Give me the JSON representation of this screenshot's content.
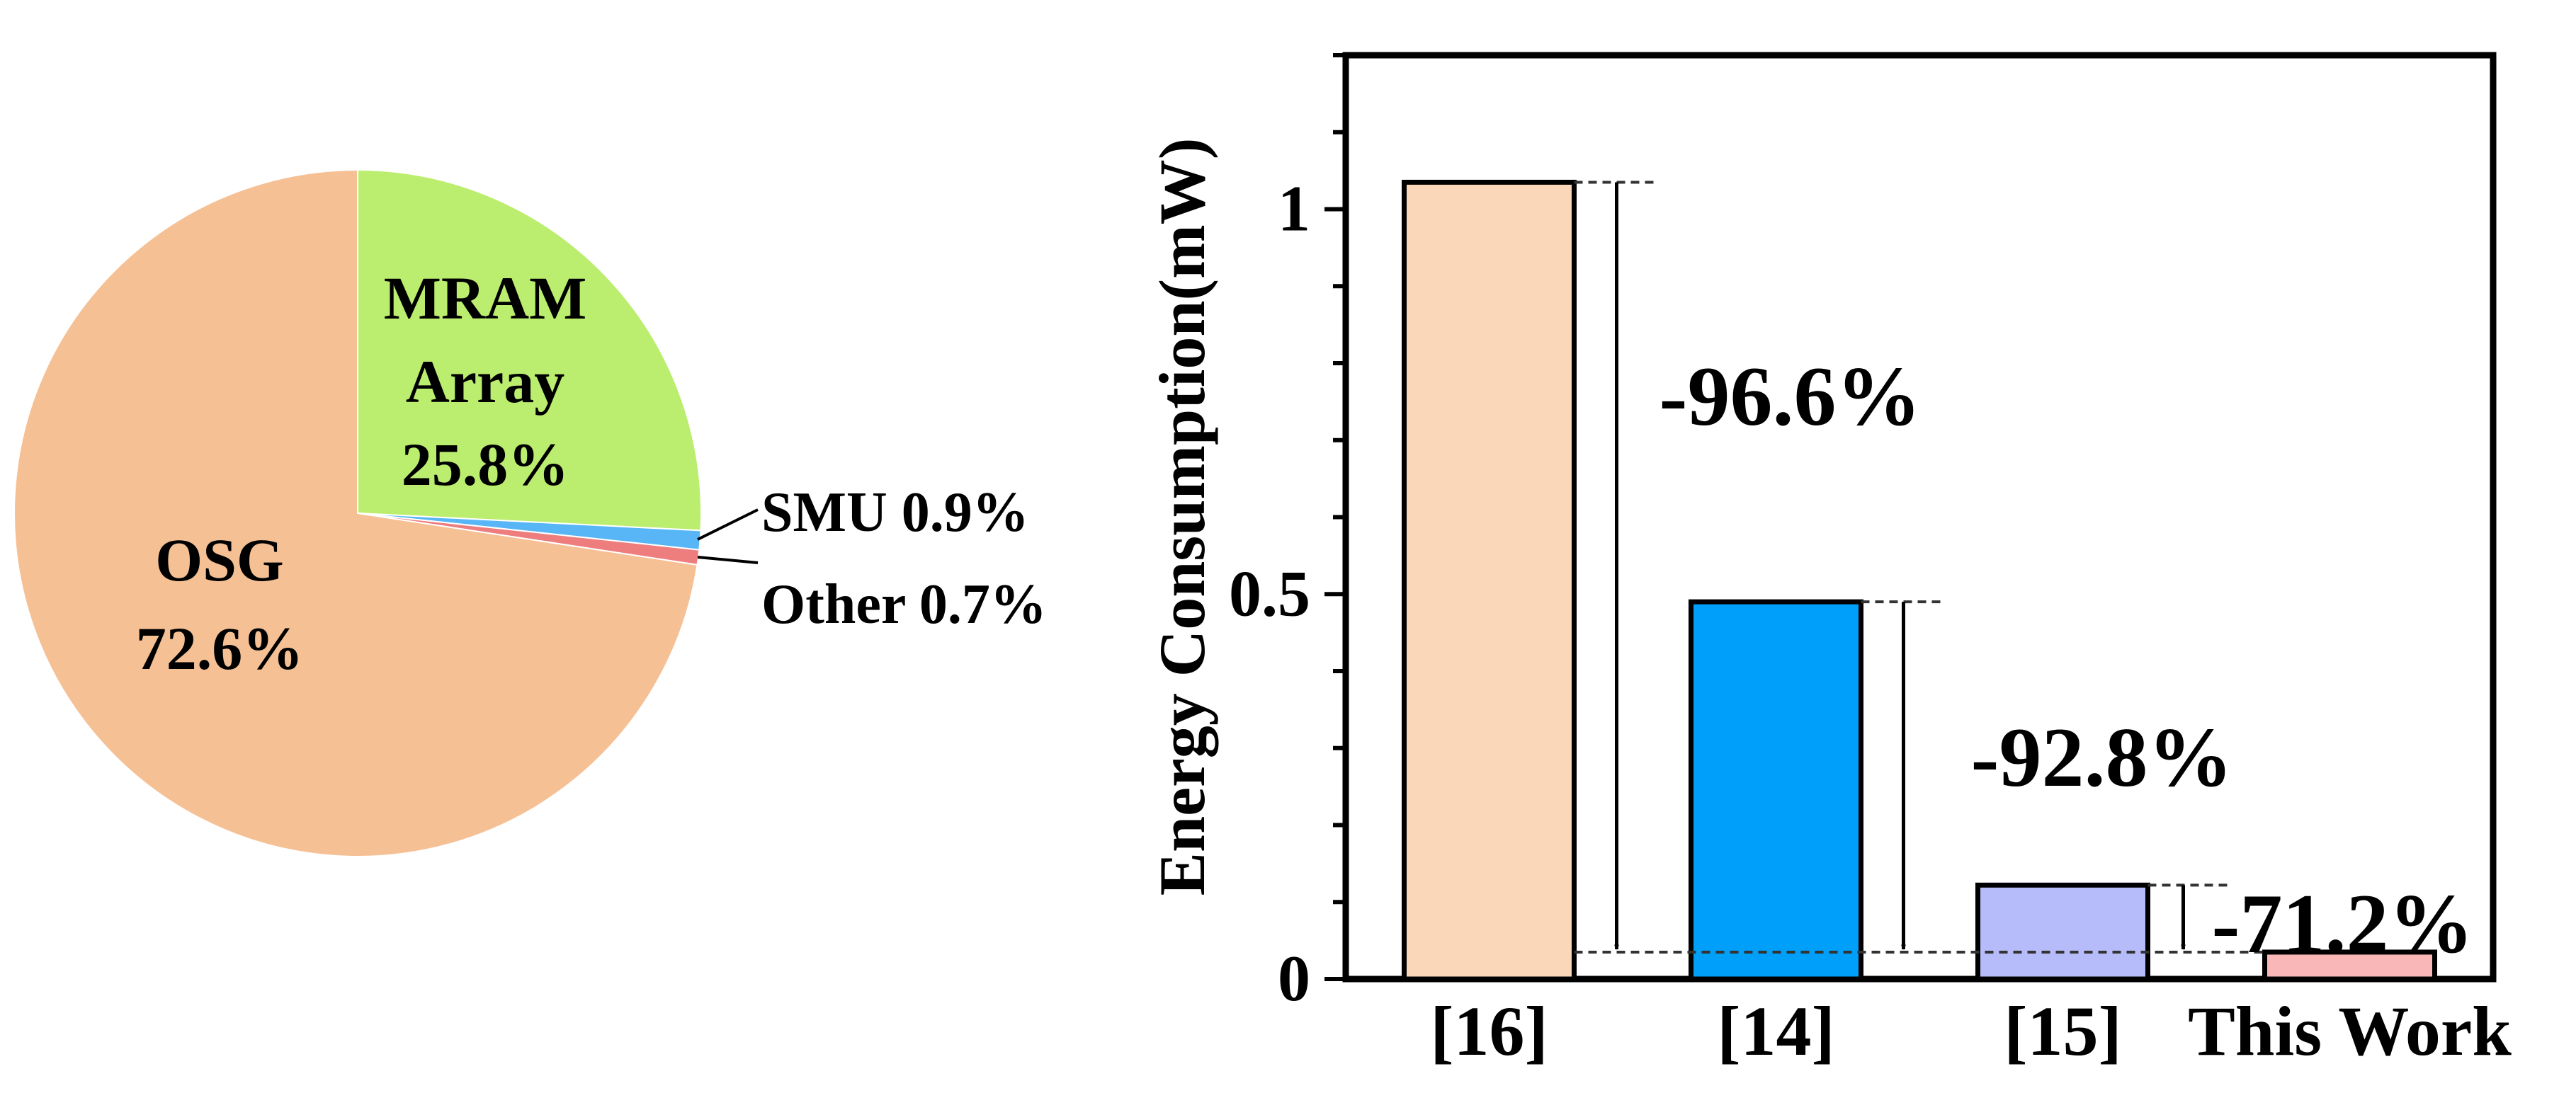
{
  "chart_data": [
    {
      "type": "pie",
      "slices": [
        {
          "name": "MRAM Array",
          "value": 25.8,
          "line1": "MRAM",
          "line2": "Array",
          "pct": "25.8%",
          "color": "#bbed6e"
        },
        {
          "name": "SMU",
          "value": 0.9,
          "label": "SMU 0.9%",
          "color": "#58b6f6"
        },
        {
          "name": "Other",
          "value": 0.7,
          "label": "Other 0.7%",
          "color": "#ee7d7d"
        },
        {
          "name": "OSG",
          "value": 72.6,
          "line1": "OSG",
          "pct": "72.6%",
          "color": "#f6c095"
        }
      ]
    },
    {
      "type": "bar",
      "categories": [
        "[16]",
        "[14]",
        "[15]",
        "This Work"
      ],
      "values": [
        1.035,
        0.49,
        0.122,
        0.035
      ],
      "colors": [
        "#f9d7b8",
        "#00a0fa",
        "#b6bcfa",
        "#f9b7b7"
      ],
      "ylabel": "Energy Consumption(mW)",
      "ylim": [
        0,
        1.2
      ],
      "yticks": [
        {
          "value": 0,
          "label": "0"
        },
        {
          "value": 0.5,
          "label": "0.5"
        },
        {
          "value": 1,
          "label": "1"
        }
      ],
      "annotations": [
        {
          "from": 0,
          "label": "-96.6%"
        },
        {
          "from": 1,
          "label": "-92.8%"
        },
        {
          "from": 2,
          "label": "-71.2%"
        }
      ]
    }
  ]
}
